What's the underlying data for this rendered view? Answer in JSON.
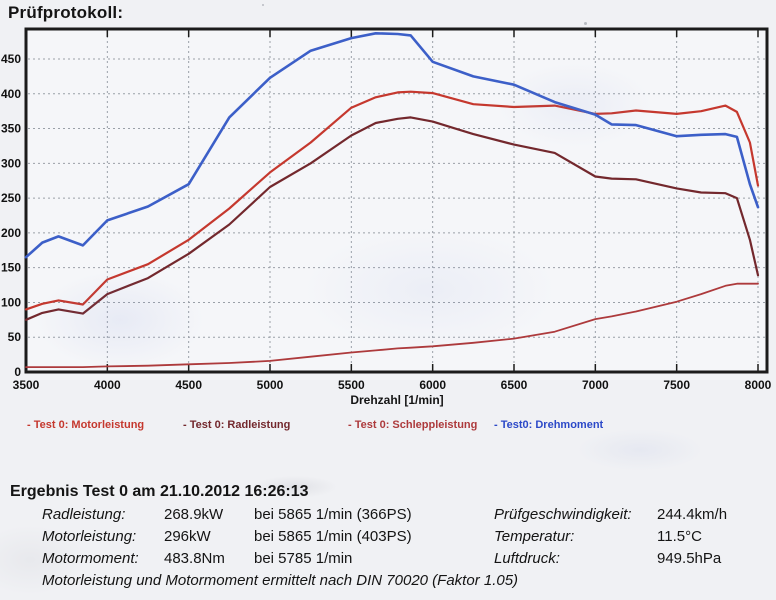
{
  "page": {
    "title": "Prüfprotokoll:"
  },
  "chart": {
    "xlabel": "Drehzahl [1/min]"
  },
  "legend": {
    "items": [
      {
        "label": "- Test 0: Motorleistung",
        "color": "#c5382e"
      },
      {
        "label": "- Test 0: Radleistung",
        "color": "#73282d"
      },
      {
        "label": "- Test 0: Schleppleistung",
        "color": "#ad3a3c"
      },
      {
        "label": "- Test0: Drehmoment",
        "color": "#2c49c8"
      }
    ]
  },
  "results": {
    "heading": "Ergebnis Test 0 am 21.10.2012 16:26:13",
    "rows": [
      {
        "label": "Radleistung:",
        "value": "268.9kW",
        "detail": "bei 5865 1/min (366PS)"
      },
      {
        "label": "Motorleistung:",
        "value": "296kW",
        "detail": "bei 5865 1/min (403PS)"
      },
      {
        "label": "Motormoment:",
        "value": "483.8Nm",
        "detail": "bei 5785 1/min"
      }
    ],
    "env_rows": [
      {
        "label": "Prüfgeschwindigkeit:",
        "value": "244.4km/h"
      },
      {
        "label": "Temperatur:",
        "value": "11.5°C"
      },
      {
        "label": "Luftdruck:",
        "value": "949.5hPa"
      }
    ],
    "footnote": "Motorleistung und Motormoment ermittelt nach DIN 70020 (Faktor 1.05)"
  },
  "chart_data": {
    "type": "line",
    "title": "",
    "xlabel": "Drehzahl [1/min]",
    "ylabel": "",
    "xlim": [
      3500,
      8060
    ],
    "ylim": [
      0,
      493
    ],
    "grid": true,
    "legend_position": "below",
    "x_ticks": [
      3500,
      4000,
      4500,
      5000,
      5500,
      6000,
      6500,
      7000,
      7500,
      8000
    ],
    "y_ticks": [
      0,
      50,
      100,
      150,
      200,
      250,
      300,
      350,
      400,
      450
    ],
    "x": [
      3500,
      3600,
      3700,
      3850,
      4000,
      4250,
      4500,
      4750,
      5000,
      5250,
      5500,
      5650,
      5785,
      5865,
      6000,
      6250,
      6500,
      6750,
      7000,
      7100,
      7250,
      7500,
      7650,
      7800,
      7870,
      7950,
      8000
    ],
    "series": [
      {
        "name": "Test 0: Motorleistung",
        "unit": "PS",
        "color": "#c5382e",
        "values": [
          90,
          98,
          103,
          97,
          133,
          155,
          190,
          235,
          287,
          330,
          380,
          395,
          402,
          403,
          401,
          385,
          381,
          383,
          371,
          372,
          376,
          371,
          375,
          383,
          374,
          330,
          268
        ]
      },
      {
        "name": "Test 0: Radleistung",
        "unit": "PS",
        "color": "#73282d",
        "values": [
          75,
          85,
          90,
          84,
          112,
          135,
          170,
          212,
          266,
          300,
          340,
          358,
          364,
          366,
          360,
          342,
          327,
          315,
          281,
          278,
          277,
          264,
          258,
          257,
          250,
          190,
          139
        ]
      },
      {
        "name": "Test 0: Schleppleistung",
        "unit": "PS",
        "color": "#ad3a3c",
        "values": [
          7,
          7,
          7,
          7,
          8,
          9,
          11,
          13,
          16,
          22,
          28,
          31,
          34,
          35,
          37,
          42,
          48,
          58,
          76,
          80,
          87,
          101,
          112,
          124,
          127,
          127,
          127
        ]
      },
      {
        "name": "Test0: Drehmoment",
        "unit": "Nm",
        "color": "#3c5fc8",
        "values": [
          165,
          186,
          195,
          182,
          218,
          238,
          270,
          366,
          423,
          462,
          480,
          487,
          486,
          484,
          446,
          425,
          413,
          388,
          370,
          356,
          355,
          339,
          341,
          342,
          338,
          270,
          237
        ]
      }
    ],
    "peak_annotations": [
      {
        "series": "Test 0: Motorleistung",
        "value": "403PS (296kW) @ 5865 1/min"
      },
      {
        "series": "Test 0: Radleistung",
        "value": "366PS (268.9kW) @ 5865 1/min"
      },
      {
        "series": "Test0: Drehmoment",
        "value": "483.8Nm @ 5785 1/min"
      }
    ]
  }
}
